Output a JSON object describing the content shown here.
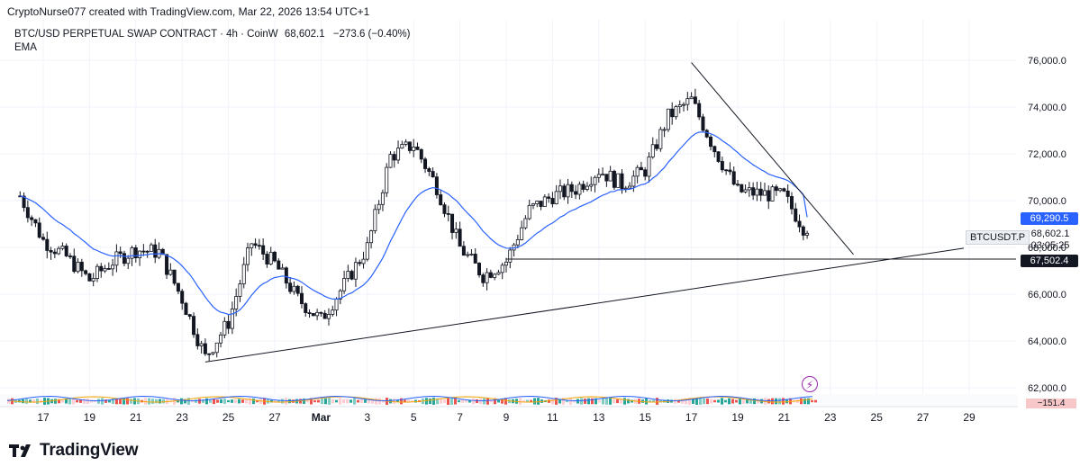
{
  "header": {
    "credit": "CryptoNurse077 created with TradingView.com, Mar 22, 2026 13:54 UTC+1"
  },
  "legend": {
    "symbol_line": "BTC/USD PERPETUAL SWAP CONTRACT · 4h · CoinW",
    "last": "68,602.1",
    "change": "−273.6 (−0.40%)",
    "indicator": "EMA"
  },
  "price_axis": {
    "labels": [
      "76,000.0",
      "74,000.0",
      "72,000.0",
      "70,000.0",
      "68,000.0",
      "66,000.0",
      "64,000.0",
      "62,000.0"
    ],
    "ema_tag": "69,290.5",
    "last_tag": "68,602.1",
    "countdown": "03:05:25",
    "level_tag": "67,502.4",
    "symbol_tag": "BTCUSDT.P",
    "osc_tag": "−151.4"
  },
  "time_axis": {
    "labels": [
      "17",
      "19",
      "21",
      "23",
      "25",
      "27",
      "Mar",
      "3",
      "5",
      "7",
      "9",
      "11",
      "13",
      "15",
      "17",
      "19",
      "21",
      "23",
      "25",
      "27",
      "29"
    ]
  },
  "colors": {
    "up": "#089981",
    "down": "#131722",
    "ema": "#2962ff",
    "ema_tag": "#2962ff",
    "level_tag": "#131722",
    "trendline": "#131722",
    "text": "#131722",
    "axis_text": "#131722"
  },
  "footer": {
    "brand": "TradingView"
  },
  "chart_data": {
    "type": "candlestick",
    "timeframe": "4h",
    "ylim": [
      61800,
      76600
    ],
    "x_axis_dates": [
      "Feb 17",
      "Feb 19",
      "Feb 21",
      "Feb 23",
      "Feb 25",
      "Feb 27",
      "Mar 1",
      "Mar 3",
      "Mar 5",
      "Mar 7",
      "Mar 9",
      "Mar 11",
      "Mar 13",
      "Mar 15",
      "Mar 17",
      "Mar 19",
      "Mar 21",
      "Mar 23",
      "Mar 25",
      "Mar 27",
      "Mar 29"
    ],
    "close_path": [
      [
        "Feb 16",
        70200
      ],
      [
        "Feb 17",
        68300
      ],
      [
        "Feb 18",
        67600
      ],
      [
        "Feb 19",
        66600
      ],
      [
        "Feb 20",
        67400
      ],
      [
        "Feb 21",
        67900
      ],
      [
        "Feb 22",
        67800
      ],
      [
        "Feb 23",
        65800
      ],
      [
        "Feb 24",
        63300
      ],
      [
        "Feb 25",
        64800
      ],
      [
        "Feb 26",
        68200
      ],
      [
        "Feb 27",
        67300
      ],
      [
        "Feb 28",
        65800
      ],
      [
        "Mar 1",
        64900
      ],
      [
        "Mar 2",
        66400
      ],
      [
        "Mar 3",
        68000
      ],
      [
        "Mar 4",
        71900
      ],
      [
        "Mar 5",
        72400
      ],
      [
        "Mar 6",
        70600
      ],
      [
        "Mar 7",
        68000
      ],
      [
        "Mar 8",
        66800
      ],
      [
        "Mar 9",
        67400
      ],
      [
        "Mar 10",
        69600
      ],
      [
        "Mar 11",
        70200
      ],
      [
        "Mar 12",
        70500
      ],
      [
        "Mar 13",
        71300
      ],
      [
        "Mar 14",
        70700
      ],
      [
        "Mar 15",
        71300
      ],
      [
        "Mar 16",
        73600
      ],
      [
        "Mar 17",
        74300
      ],
      [
        "Mar 18",
        72200
      ],
      [
        "Mar 19",
        70400
      ],
      [
        "Mar 20",
        70300
      ],
      [
        "Mar 21",
        70200
      ],
      [
        "Mar 22",
        68602.1
      ]
    ],
    "last_price": 68602.1,
    "ema_last": 69290.5,
    "horizontal_level": 67502.4,
    "rising_trendline": {
      "from": [
        "Feb 24",
        63100
      ],
      "to": [
        "Mar 31",
        68300
      ]
    },
    "falling_trendline": {
      "from": [
        "Mar 17",
        75900
      ],
      "to": [
        "Mar 24",
        67700
      ]
    }
  }
}
